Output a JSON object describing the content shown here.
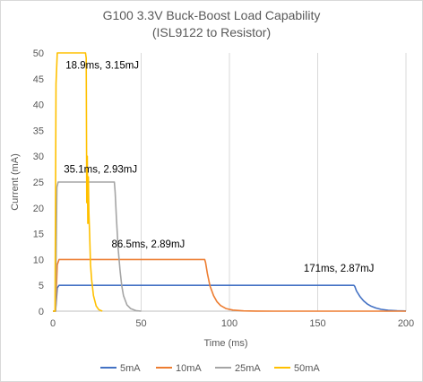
{
  "chart_data": {
    "type": "line",
    "title": [
      "G100 3.3V Buck-Boost Load Capability",
      "(ISL9122 to Resistor)"
    ],
    "xlabel": "Time (ms)",
    "ylabel": "Current (mA)",
    "xlim": [
      0,
      200
    ],
    "ylim": [
      0,
      50
    ],
    "x_ticks": [
      0,
      50,
      100,
      150,
      200
    ],
    "y_ticks": [
      0,
      5,
      10,
      15,
      20,
      25,
      30,
      35,
      40,
      45,
      50
    ],
    "grid": "vertical",
    "legend_position": "bottom",
    "series": [
      {
        "name": "5mA",
        "color": "#4472C4",
        "x": [
          0,
          1.5,
          2.5,
          3.5,
          170.5,
          171,
          172,
          174,
          176,
          178,
          180,
          183,
          186,
          190,
          195,
          200
        ],
        "y": [
          0,
          0,
          4.5,
          5,
          5,
          4.8,
          3.9,
          2.8,
          2.0,
          1.4,
          1.0,
          0.6,
          0.35,
          0.18,
          0.07,
          0.03
        ]
      },
      {
        "name": "10mA",
        "color": "#ED7D31",
        "x": [
          0,
          1.5,
          2.5,
          3.5,
          86,
          86.5,
          87.5,
          89,
          91,
          93,
          95,
          98,
          102,
          108,
          115,
          125,
          200
        ],
        "y": [
          0,
          0,
          9,
          10,
          10,
          9.4,
          7.3,
          4.9,
          3.0,
          1.8,
          1.1,
          0.5,
          0.2,
          0.05,
          0.02,
          0,
          0
        ]
      },
      {
        "name": "25mA",
        "color": "#A5A5A5",
        "x": [
          0,
          1.5,
          2.3,
          3,
          34.8,
          35.3,
          36,
          37,
          38,
          39,
          40,
          42,
          44,
          47,
          50
        ],
        "y": [
          0,
          0,
          24,
          25,
          25,
          23,
          18,
          12,
          8,
          5,
          3,
          1.2,
          0.5,
          0.1,
          0
        ]
      },
      {
        "name": "50mA",
        "color": "#FFC000",
        "x": [
          0,
          1.2,
          1.8,
          2.5,
          18.5,
          18.9,
          19.2,
          19.5,
          19.8,
          20.1,
          20.4,
          20.8,
          21.3,
          22,
          23,
          24.5,
          26,
          28
        ],
        "y": [
          0,
          0,
          44,
          50,
          50,
          49,
          21,
          30,
          17,
          26,
          19,
          15,
          9,
          6,
          3,
          1,
          0.3,
          0
        ]
      }
    ],
    "annotations": [
      {
        "text": "18.9ms, 3.15mJ",
        "x": 28,
        "y": 47
      },
      {
        "text": "35.1ms, 2.93mJ",
        "x": 27,
        "y": 26.8
      },
      {
        "text": "86.5ms, 2.89mJ",
        "x": 54,
        "y": 12.3
      },
      {
        "text": "171ms, 2.87mJ",
        "x": 162,
        "y": 7.6
      }
    ]
  }
}
